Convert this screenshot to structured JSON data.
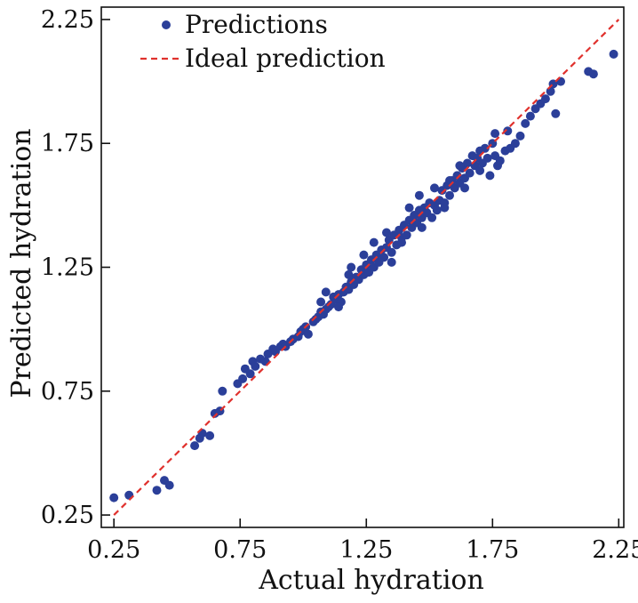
{
  "chart_data": {
    "type": "scatter",
    "title": "",
    "xlabel": "Actual hydration",
    "ylabel": "Predicted hydration",
    "xlim": [
      0.2,
      2.27
    ],
    "ylim": [
      0.2,
      2.3
    ],
    "xticks": [
      0.25,
      0.75,
      1.25,
      1.75,
      2.25
    ],
    "yticks": [
      0.25,
      0.75,
      1.25,
      1.75,
      2.25
    ],
    "xtick_labels": [
      "0.25",
      "0.75",
      "1.25",
      "1.75",
      "2.25"
    ],
    "ytick_labels": [
      "0.25",
      "0.75",
      "1.25",
      "1.75",
      "2.25"
    ],
    "grid": false,
    "legend_position": "top-left",
    "colors": {
      "points": "#2b3f99",
      "ideal": "#e0312d",
      "axes": "#111111"
    },
    "series": [
      {
        "name": "Predictions",
        "kind": "scatter",
        "points": [
          [
            0.25,
            0.32
          ],
          [
            0.31,
            0.33
          ],
          [
            0.42,
            0.35
          ],
          [
            0.45,
            0.39
          ],
          [
            0.47,
            0.37
          ],
          [
            0.57,
            0.53
          ],
          [
            0.59,
            0.56
          ],
          [
            0.6,
            0.58
          ],
          [
            0.63,
            0.57
          ],
          [
            0.65,
            0.66
          ],
          [
            0.67,
            0.67
          ],
          [
            0.68,
            0.75
          ],
          [
            0.74,
            0.78
          ],
          [
            0.76,
            0.8
          ],
          [
            0.79,
            0.82
          ],
          [
            0.77,
            0.84
          ],
          [
            0.8,
            0.87
          ],
          [
            0.81,
            0.85
          ],
          [
            0.83,
            0.88
          ],
          [
            0.85,
            0.87
          ],
          [
            0.86,
            0.9
          ],
          [
            0.88,
            0.92
          ],
          [
            0.89,
            0.91
          ],
          [
            0.91,
            0.93
          ],
          [
            0.92,
            0.94
          ],
          [
            0.93,
            0.93
          ],
          [
            0.95,
            0.95
          ],
          [
            0.96,
            0.96
          ],
          [
            0.98,
            0.97
          ],
          [
            0.99,
            0.99
          ],
          [
            1.0,
            1.0
          ],
          [
            1.01,
            1.01
          ],
          [
            1.02,
            0.98
          ],
          [
            1.04,
            1.03
          ],
          [
            1.05,
            1.04
          ],
          [
            1.06,
            1.05
          ],
          [
            1.07,
            1.07
          ],
          [
            1.08,
            1.06
          ],
          [
            1.09,
            1.08
          ],
          [
            1.1,
            1.09
          ],
          [
            1.11,
            1.1
          ],
          [
            1.12,
            1.13
          ],
          [
            1.13,
            1.12
          ],
          [
            1.14,
            1.14
          ],
          [
            1.15,
            1.11
          ],
          [
            1.16,
            1.15
          ],
          [
            1.17,
            1.17
          ],
          [
            1.18,
            1.16
          ],
          [
            1.18,
            1.22
          ],
          [
            1.19,
            1.19
          ],
          [
            1.2,
            1.18
          ],
          [
            1.21,
            1.21
          ],
          [
            1.22,
            1.2
          ],
          [
            1.23,
            1.24
          ],
          [
            1.24,
            1.22
          ],
          [
            1.25,
            1.26
          ],
          [
            1.26,
            1.23
          ],
          [
            1.27,
            1.28
          ],
          [
            1.28,
            1.25
          ],
          [
            1.29,
            1.3
          ],
          [
            1.3,
            1.27
          ],
          [
            1.31,
            1.32
          ],
          [
            1.32,
            1.29
          ],
          [
            1.33,
            1.33
          ],
          [
            1.34,
            1.36
          ],
          [
            1.35,
            1.31
          ],
          [
            1.36,
            1.38
          ],
          [
            1.37,
            1.34
          ],
          [
            1.38,
            1.4
          ],
          [
            1.39,
            1.37
          ],
          [
            1.4,
            1.42
          ],
          [
            1.41,
            1.38
          ],
          [
            1.42,
            1.44
          ],
          [
            1.43,
            1.41
          ],
          [
            1.44,
            1.46
          ],
          [
            1.45,
            1.43
          ],
          [
            1.46,
            1.48
          ],
          [
            1.47,
            1.45
          ],
          [
            1.48,
            1.49
          ],
          [
            1.49,
            1.47
          ],
          [
            1.5,
            1.51
          ],
          [
            1.51,
            1.45
          ],
          [
            1.52,
            1.5
          ],
          [
            1.53,
            1.48
          ],
          [
            1.54,
            1.52
          ],
          [
            1.55,
            1.56
          ],
          [
            1.56,
            1.51
          ],
          [
            1.57,
            1.58
          ],
          [
            1.58,
            1.54
          ],
          [
            1.59,
            1.6
          ],
          [
            1.6,
            1.57
          ],
          [
            1.61,
            1.62
          ],
          [
            1.62,
            1.59
          ],
          [
            1.63,
            1.65
          ],
          [
            1.64,
            1.61
          ],
          [
            1.65,
            1.67
          ],
          [
            1.66,
            1.63
          ],
          [
            1.67,
            1.7
          ],
          [
            1.68,
            1.66
          ],
          [
            1.69,
            1.69
          ],
          [
            1.7,
            1.72
          ],
          [
            1.71,
            1.67
          ],
          [
            1.72,
            1.73
          ],
          [
            1.73,
            1.69
          ],
          [
            1.74,
            1.62
          ],
          [
            1.75,
            1.75
          ],
          [
            1.76,
            1.7
          ],
          [
            1.77,
            1.66
          ],
          [
            1.78,
            1.68
          ],
          [
            1.8,
            1.72
          ],
          [
            1.82,
            1.73
          ],
          [
            1.84,
            1.75
          ],
          [
            1.86,
            1.78
          ],
          [
            1.88,
            1.83
          ],
          [
            1.9,
            1.86
          ],
          [
            1.92,
            1.89
          ],
          [
            1.94,
            1.91
          ],
          [
            1.96,
            1.93
          ],
          [
            1.98,
            1.96
          ],
          [
            2.0,
            1.87
          ],
          [
            2.02,
            2.0
          ],
          [
            1.99,
            1.99
          ],
          [
            2.13,
            2.04
          ],
          [
            2.15,
            2.03
          ],
          [
            2.23,
            2.11
          ],
          [
            1.46,
            1.54
          ],
          [
            1.42,
            1.49
          ],
          [
            1.35,
            1.27
          ],
          [
            1.28,
            1.35
          ],
          [
            1.52,
            1.57
          ],
          [
            1.58,
            1.6
          ],
          [
            1.62,
            1.66
          ],
          [
            1.47,
            1.41
          ],
          [
            1.39,
            1.35
          ],
          [
            1.33,
            1.39
          ],
          [
            1.56,
            1.49
          ],
          [
            1.64,
            1.57
          ],
          [
            1.7,
            1.64
          ],
          [
            1.76,
            1.79
          ],
          [
            1.81,
            1.8
          ],
          [
            1.24,
            1.3
          ],
          [
            1.19,
            1.25
          ],
          [
            1.14,
            1.09
          ],
          [
            1.07,
            1.11
          ],
          [
            1.09,
            1.15
          ]
        ]
      },
      {
        "name": "Ideal prediction",
        "kind": "dashed-line",
        "points": [
          [
            0.25,
            0.25
          ],
          [
            2.25,
            2.25
          ]
        ]
      }
    ]
  }
}
